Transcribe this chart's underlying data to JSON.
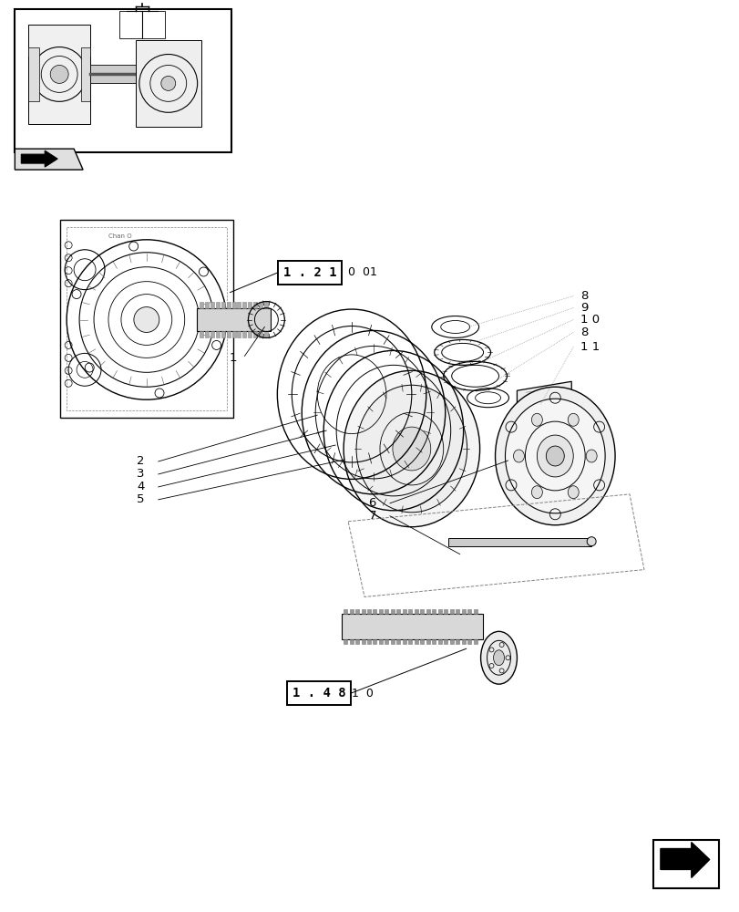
{
  "bg_color": "#ffffff",
  "line_color": "#000000",
  "box_121_text": "1 . 2 1",
  "box_121_suffix": "0  01",
  "box_148_text": "1 . 4 8",
  "box_148_suffix": "1  0",
  "fig_width": 8.12,
  "fig_height": 10.0,
  "dpi": 100
}
